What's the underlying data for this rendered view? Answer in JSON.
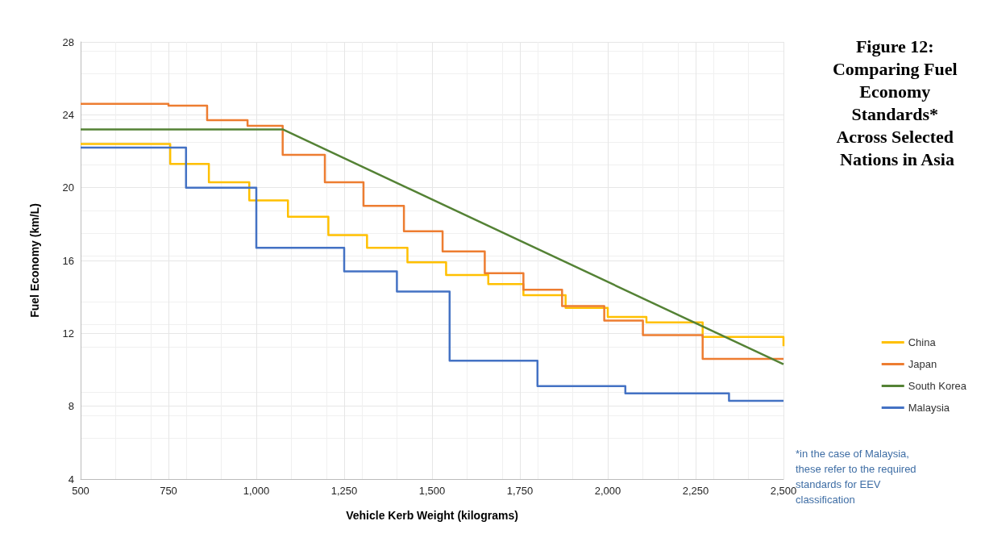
{
  "chart_data": {
    "type": "step",
    "title": "Figure 12: Comparing Fuel Economy Standards* Across Selected Nations in Asia",
    "xlabel": "Vehicle Kerb Weight (kilograms)",
    "ylabel": "Fuel Economy (km/L)",
    "xlim": [
      500,
      2500
    ],
    "ylim": [
      4,
      28
    ],
    "xticks": [
      500,
      750,
      {
        "value": 1000,
        "label": "1,000"
      },
      {
        "value": 1250,
        "label": "1,250"
      },
      {
        "value": 1500,
        "label": "1,500"
      },
      {
        "value": 1750,
        "label": "1,750"
      },
      {
        "value": 2000,
        "label": "2,000"
      },
      {
        "value": 2250,
        "label": "2,250"
      },
      {
        "value": 2500,
        "label": "2,500"
      }
    ],
    "yticks": [
      4,
      8,
      12,
      16,
      20,
      24,
      28
    ],
    "grid": true,
    "legend": "right",
    "line_style": "solid",
    "marker": "none",
    "annotations": [
      "*in the case of Malaysia, these refer to the required standards for EEV classification"
    ],
    "series": [
      {
        "name": "China",
        "color": "#ffc000",
        "x": [
          500,
          755,
          865,
          980,
          1090,
          1205,
          1315,
          1430,
          1540,
          1660,
          1760,
          1880,
          2000,
          2110,
          2270,
          2500
        ],
        "values": [
          22.4,
          21.3,
          20.3,
          19.3,
          18.4,
          17.4,
          16.7,
          15.9,
          15.2,
          14.7,
          14.1,
          13.4,
          12.9,
          12.6,
          11.8,
          11.3
        ]
      },
      {
        "name": "Japan",
        "color": "#ed7d31",
        "x": [
          500,
          750,
          860,
          975,
          1075,
          1195,
          1305,
          1420,
          1530,
          1650,
          1760,
          1870,
          1990,
          2100,
          2270,
          2500
        ],
        "values": [
          24.6,
          24.5,
          23.7,
          23.4,
          21.8,
          20.3,
          19.0,
          17.6,
          16.5,
          15.3,
          14.4,
          13.5,
          12.7,
          11.9,
          10.6,
          10.6
        ]
      },
      {
        "name": "South Korea",
        "type": "line",
        "color": "#548235",
        "x": [
          500,
          1075,
          2500
        ],
        "values": [
          23.2,
          23.2,
          10.3
        ]
      },
      {
        "name": "Malaysia",
        "color": "#4472c4",
        "x": [
          500,
          800,
          1000,
          1250,
          1400,
          1550,
          1800,
          2050,
          2345,
          2500
        ],
        "values": [
          22.2,
          20.0,
          16.7,
          15.4,
          14.3,
          10.5,
          9.1,
          8.7,
          8.3,
          8.3
        ]
      }
    ]
  }
}
